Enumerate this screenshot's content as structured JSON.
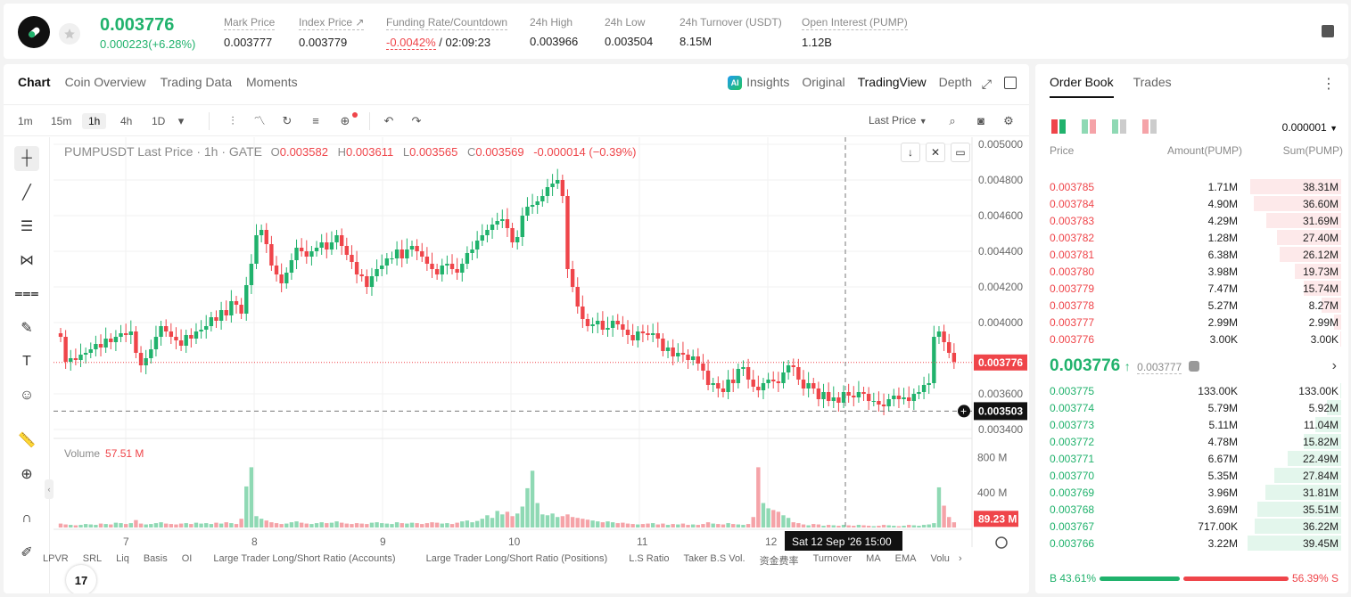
{
  "ticker": {
    "price": "0.003776",
    "change": "0.000223(+6.28%)",
    "stats": [
      {
        "label": "Mark Price",
        "value": "0.003777"
      },
      {
        "label": "Index Price ↗",
        "value": "0.003779"
      },
      {
        "label": "Funding Rate/Countdown",
        "value_rate": "-0.0042%",
        "value_countdown": "/ 02:09:23"
      },
      {
        "label": "24h High",
        "value": "0.003966"
      },
      {
        "label": "24h Low",
        "value": "0.003504"
      },
      {
        "label": "24h Turnover (USDT)",
        "value": "8.15M"
      },
      {
        "label": "Open Interest (PUMP)",
        "value": "1.12B"
      }
    ]
  },
  "chart_tabs": [
    "Chart",
    "Coin Overview",
    "Trading Data",
    "Moments"
  ],
  "view_tabs": {
    "ai": "AI",
    "insights": "Insights",
    "original": "Original",
    "tradingview": "TradingView",
    "depth": "Depth"
  },
  "timeframes": [
    "1m",
    "15m",
    "1h",
    "4h",
    "1D"
  ],
  "toolbar": {
    "last_price": "Last Price"
  },
  "legend": {
    "title": "PUMPUSDT Last Price · 1h · GATE",
    "o_label": "O",
    "o": "0.003582",
    "h_label": "H",
    "h": "0.003611",
    "l_label": "L",
    "l": "0.003565",
    "c_label": "C",
    "c": "0.003569",
    "change": "-0.000014 (−0.39%)"
  },
  "volume": {
    "label": "Volume",
    "value": "57.51 M"
  },
  "price_axis": [
    "0.005000",
    "0.004800",
    "0.004600",
    "0.004400",
    "0.004200",
    "0.004000",
    "0.003600",
    "0.003400"
  ],
  "price_tags": {
    "current": "0.003776",
    "cursor": "0.003503"
  },
  "volume_axis": [
    "800 M",
    "400 M"
  ],
  "volume_tag": "89.23 M",
  "time_axis": [
    "7",
    "8",
    "9",
    "10",
    "11",
    "12"
  ],
  "cursor_time": "Sat 12 Sep '26   15:00",
  "tv_logo": "17",
  "indicators": [
    "LPVR",
    "SRL",
    "Liq",
    "Basis",
    "OI",
    "Large Trader Long/Short Ratio (Accounts)",
    "Large Trader Long/Short Ratio (Positions)",
    "L.S Ratio",
    "Taker B.S Vol.",
    "资金费率",
    "Turnover",
    "MA",
    "EMA",
    "Volu"
  ],
  "chart_data": {
    "type": "candlestick",
    "interval": "1h",
    "ylim": [
      0.00335,
      0.00501
    ],
    "volume_ylim": [
      0,
      1000
    ],
    "x_ticks": [
      "7",
      "8",
      "9",
      "10",
      "11",
      "12"
    ],
    "close": [
      0.00392,
      0.00378,
      0.0038,
      0.00379,
      0.00382,
      0.00383,
      0.00385,
      0.00388,
      0.00386,
      0.00391,
      0.00389,
      0.00392,
      0.00394,
      0.00393,
      0.00395,
      0.00383,
      0.00376,
      0.0038,
      0.00385,
      0.00392,
      0.00398,
      0.00395,
      0.00392,
      0.0039,
      0.00387,
      0.00393,
      0.00391,
      0.00395,
      0.00396,
      0.00398,
      0.00403,
      0.00401,
      0.00407,
      0.00404,
      0.00412,
      0.0041,
      0.00405,
      0.00421,
      0.00433,
      0.00449,
      0.00452,
      0.00444,
      0.00432,
      0.00427,
      0.00422,
      0.00428,
      0.00435,
      0.00442,
      0.0044,
      0.00437,
      0.0044,
      0.00442,
      0.00445,
      0.00441,
      0.00445,
      0.00449,
      0.00443,
      0.00438,
      0.00434,
      0.00427,
      0.00426,
      0.0042,
      0.00426,
      0.0043,
      0.00432,
      0.00436,
      0.00436,
      0.00441,
      0.00436,
      0.00441,
      0.00443,
      0.0044,
      0.00437,
      0.00433,
      0.0043,
      0.00427,
      0.00432,
      0.00433,
      0.0043,
      0.00428,
      0.00433,
      0.00439,
      0.00441,
      0.00446,
      0.00449,
      0.00452,
      0.00455,
      0.00457,
      0.00458,
      0.00453,
      0.00445,
      0.00448,
      0.0046,
      0.00465,
      0.00466,
      0.00468,
      0.00471,
      0.00476,
      0.00478,
      0.0048,
      0.00471,
      0.0043,
      0.0042,
      0.00409,
      0.00402,
      0.00398,
      0.00399,
      0.00401,
      0.00396,
      0.00397,
      0.00401,
      0.00399,
      0.00396,
      0.00393,
      0.0039,
      0.00395,
      0.00394,
      0.00393,
      0.00394,
      0.00391,
      0.00384,
      0.00386,
      0.00381,
      0.00383,
      0.00382,
      0.00379,
      0.00381,
      0.00377,
      0.00373,
      0.00365,
      0.00366,
      0.00363,
      0.00361,
      0.00368,
      0.00366,
      0.00374,
      0.00375,
      0.00368,
      0.00364,
      0.00362,
      0.00366,
      0.00368,
      0.00367,
      0.00366,
      0.00372,
      0.00376,
      0.00375,
      0.00368,
      0.00363,
      0.00366,
      0.00363,
      0.00357,
      0.00361,
      0.00356,
      0.00358,
      0.00355,
      0.00361,
      0.00359,
      0.00358,
      0.00361,
      0.0036,
      0.00356,
      0.00356,
      0.00354,
      0.00353,
      0.00357,
      0.00359,
      0.00357,
      0.00358,
      0.00356,
      0.0036,
      0.00361,
      0.00365,
      0.00366,
      0.00392,
      0.00395,
      0.00389,
      0.00383,
      0.00378
    ],
    "volume": [
      45,
      35,
      30,
      25,
      30,
      40,
      35,
      30,
      45,
      40,
      35,
      55,
      50,
      40,
      50,
      85,
      45,
      35,
      40,
      50,
      60,
      45,
      40,
      35,
      45,
      50,
      40,
      55,
      45,
      50,
      40,
      55,
      45,
      60,
      50,
      40,
      100,
      470,
      690,
      130,
      100,
      80,
      60,
      50,
      40,
      45,
      60,
      70,
      55,
      45,
      40,
      50,
      60,
      50,
      55,
      70,
      55,
      45,
      40,
      50,
      45,
      40,
      55,
      60,
      50,
      45,
      40,
      60,
      50,
      45,
      55,
      50,
      40,
      50,
      60,
      55,
      45,
      50,
      40,
      55,
      70,
      80,
      60,
      75,
      100,
      140,
      110,
      190,
      150,
      180,
      130,
      160,
      240,
      450,
      650,
      280,
      150,
      140,
      160,
      120,
      130,
      150,
      120,
      110,
      100,
      90,
      80,
      70,
      60,
      70,
      60,
      50,
      55,
      45,
      40,
      35,
      40,
      45,
      50,
      35,
      45,
      30,
      40,
      35,
      45,
      30,
      35,
      30,
      40,
      60,
      45,
      40,
      35,
      50,
      40,
      35,
      30,
      40,
      120,
      690,
      280,
      220,
      200,
      180,
      140,
      110,
      60,
      50,
      35,
      25,
      40,
      35,
      20,
      30,
      25,
      20,
      30,
      25,
      20,
      30,
      25,
      20,
      15,
      20,
      30,
      25,
      20,
      15,
      20,
      30,
      25,
      20,
      30,
      35,
      50,
      460,
      250,
      120,
      60
    ],
    "current_price": 0.003776,
    "cursor_price": 0.003503,
    "volume_last": 89.23
  },
  "orderbook": {
    "tabs": [
      "Order Book",
      "Trades"
    ],
    "precision": "0.000001",
    "columns": {
      "price": "Price",
      "amount": "Amount(PUMP)",
      "sum": "Sum(PUMP)"
    },
    "asks": [
      {
        "price": "0.003785",
        "amount": "1.71M",
        "sum": "38.31M",
        "depth": 0.97
      },
      {
        "price": "0.003784",
        "amount": "4.90M",
        "sum": "36.60M",
        "depth": 0.93
      },
      {
        "price": "0.003783",
        "amount": "4.29M",
        "sum": "31.69M",
        "depth": 0.8
      },
      {
        "price": "0.003782",
        "amount": "1.28M",
        "sum": "27.40M",
        "depth": 0.69
      },
      {
        "price": "0.003781",
        "amount": "6.38M",
        "sum": "26.12M",
        "depth": 0.66
      },
      {
        "price": "0.003780",
        "amount": "3.98M",
        "sum": "19.73M",
        "depth": 0.5
      },
      {
        "price": "0.003779",
        "amount": "7.47M",
        "sum": "15.74M",
        "depth": 0.4
      },
      {
        "price": "0.003778",
        "amount": "5.27M",
        "sum": "8.27M",
        "depth": 0.21
      },
      {
        "price": "0.003777",
        "amount": "2.99M",
        "sum": "2.99M",
        "depth": 0.08
      },
      {
        "price": "0.003776",
        "amount": "3.00K",
        "sum": "3.00K",
        "depth": 0.005
      }
    ],
    "mid": {
      "price": "0.003776",
      "arrow": "↑",
      "mark": "0.003777"
    },
    "bids": [
      {
        "price": "0.003775",
        "amount": "133.00K",
        "sum": "133.00K",
        "depth": 0.004
      },
      {
        "price": "0.003774",
        "amount": "5.79M",
        "sum": "5.92M",
        "depth": 0.15
      },
      {
        "price": "0.003773",
        "amount": "5.11M",
        "sum": "11.04M",
        "depth": 0.28
      },
      {
        "price": "0.003772",
        "amount": "4.78M",
        "sum": "15.82M",
        "depth": 0.4
      },
      {
        "price": "0.003771",
        "amount": "6.67M",
        "sum": "22.49M",
        "depth": 0.57
      },
      {
        "price": "0.003770",
        "amount": "5.35M",
        "sum": "27.84M",
        "depth": 0.71
      },
      {
        "price": "0.003769",
        "amount": "3.96M",
        "sum": "31.81M",
        "depth": 0.81
      },
      {
        "price": "0.003768",
        "amount": "3.69M",
        "sum": "35.51M",
        "depth": 0.9
      },
      {
        "price": "0.003767",
        "amount": "717.00K",
        "sum": "36.22M",
        "depth": 0.92
      },
      {
        "price": "0.003766",
        "amount": "3.22M",
        "sum": "39.45M",
        "depth": 1.0
      }
    ],
    "ratio": {
      "b_label": "B",
      "b": "43.61%",
      "s": "56.39%",
      "s_label": "S",
      "b_fraction": 0.4361
    }
  },
  "colors": {
    "up": "#20b26c",
    "down": "#ef454a",
    "up_light": "#8fd9b4",
    "down_light": "#f5a3a8"
  }
}
